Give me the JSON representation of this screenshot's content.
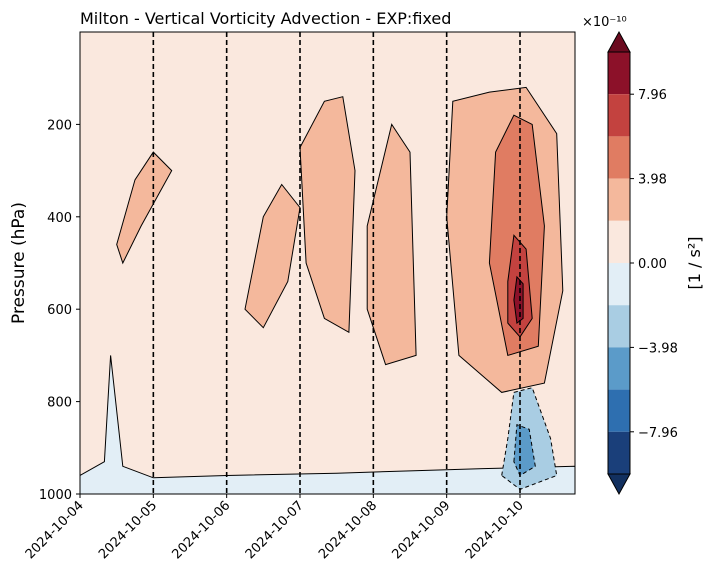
{
  "chart_data": {
    "type": "contour",
    "title": "Milton - Vertical Vorticity Advection - EXP:fixed",
    "ylabel": "Pressure (hPa)",
    "y_axis": {
      "inverted": true,
      "ylim": [
        1000,
        0
      ],
      "ticks": [
        200,
        400,
        600,
        800,
        1000
      ]
    },
    "x_axis": {
      "type": "date",
      "ticks": [
        "2024-10-04",
        "2024-10-05",
        "2024-10-06",
        "2024-10-07",
        "2024-10-08",
        "2024-10-09",
        "2024-10-10"
      ],
      "xlim": [
        "2024-10-04T00:00",
        "2024-10-10T18:00"
      ]
    },
    "vertical_dashed_lines": [
      "2024-10-05",
      "2024-10-06",
      "2024-10-07",
      "2024-10-08",
      "2024-10-09",
      "2024-10-10"
    ],
    "colorbar": {
      "label": "[1 / s²]",
      "scale_text": "×10⁻¹⁰",
      "ticks": [
        "7.96",
        "3.98",
        "0.00",
        "−3.98",
        "−7.96"
      ],
      "tick_values": [
        7.96,
        3.98,
        0.0,
        -3.98,
        -7.96
      ],
      "levels": [
        -11.94,
        -9.95,
        -7.96,
        -5.97,
        -3.98,
        -1.99,
        0.0,
        1.99,
        3.98,
        5.97,
        7.96,
        9.95,
        11.94
      ],
      "colors": [
        "#1a3f7a",
        "#2e6fb0",
        "#5b9bc9",
        "#a9cde3",
        "#e2eef6",
        "#fae8de",
        "#f4b89c",
        "#e07c62",
        "#c3423f",
        "#8c1129"
      ],
      "extend": "both",
      "under_color": "#12305f",
      "over_color": "#6b0a1f"
    },
    "features": [
      {
        "label": "strong positive core",
        "x": "2024-10-09T23:00",
        "p": 580,
        "value_level": 8.96
      },
      {
        "label": "positive column",
        "x_range": [
          "2024-10-09T12:00",
          "2024-10-10T06:00"
        ],
        "p_range": [
          150,
          700
        ],
        "value_range": [
          1.99,
          7.96
        ]
      },
      {
        "label": "negative low-level feature",
        "x": "2024-10-10T00:00",
        "p": 920,
        "value_range": [
          -7.96,
          -1.99
        ]
      },
      {
        "label": "near-surface negative band",
        "p_range": [
          940,
          1000
        ],
        "value_range": [
          -3.98,
          0.0
        ]
      }
    ]
  }
}
